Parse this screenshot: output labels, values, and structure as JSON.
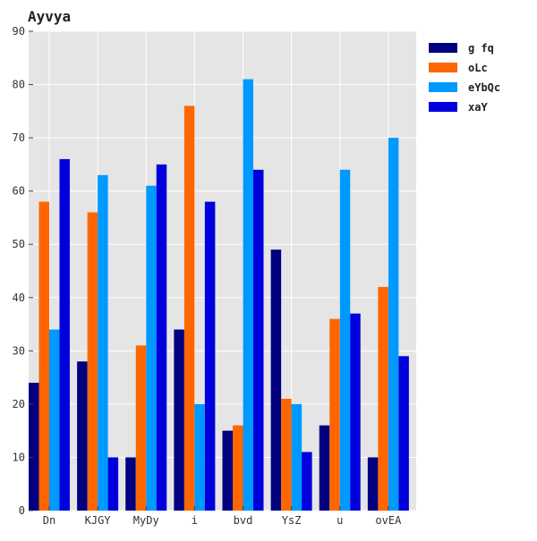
{
  "chart_data": {
    "type": "bar",
    "title": "Ayvya",
    "xlabel": "",
    "ylabel": "",
    "categories": [
      "Dn",
      "KJGY",
      "MyDy",
      "i",
      "bvd",
      "YsZ",
      "u",
      "ovEA"
    ],
    "series": [
      {
        "name": "g fq",
        "color": "#000080",
        "values": [
          24,
          28,
          10,
          34,
          15,
          49,
          16,
          10
        ]
      },
      {
        "name": "oLc",
        "color": "#ff6600",
        "values": [
          58,
          56,
          31,
          76,
          16,
          21,
          36,
          42
        ]
      },
      {
        "name": "eYbQc",
        "color": "#0099ff",
        "values": [
          34,
          63,
          61,
          20,
          81,
          20,
          64,
          70
        ]
      },
      {
        "name": "xaY",
        "color": "#0000dd",
        "values": [
          66,
          10,
          65,
          58,
          64,
          11,
          37,
          29
        ]
      }
    ],
    "ylim": [
      0,
      90
    ],
    "yticks": [
      0,
      10,
      20,
      30,
      40,
      50,
      60,
      70,
      80,
      90
    ],
    "grid": true,
    "legend_position": "outside-right-top",
    "plot_background": "#e5e5e5"
  }
}
